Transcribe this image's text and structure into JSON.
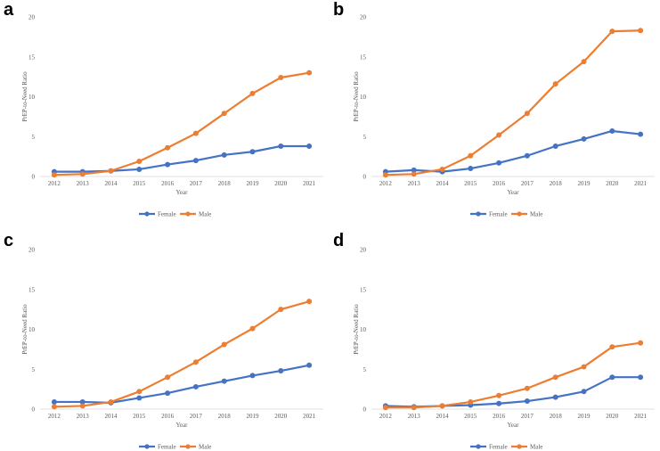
{
  "colors": {
    "female": "#4472c4",
    "male": "#ed7d31"
  },
  "chart_data": [
    {
      "type": "line",
      "panel": "a",
      "x": [
        2012,
        2013,
        2014,
        2015,
        2016,
        2017,
        2018,
        2019,
        2020,
        2021
      ],
      "categories": [
        "2012",
        "2013",
        "2014",
        "2015",
        "2016",
        "2017",
        "2018",
        "2019",
        "2020",
        "2021"
      ],
      "yticks": [
        "0",
        "5",
        "10",
        "15",
        "20"
      ],
      "ylim": [
        0,
        20
      ],
      "xlabel": "Year",
      "ylabel": "PrEP-to-Need Ratio",
      "legend": [
        "Female",
        "Male"
      ],
      "series": [
        {
          "name": "Female",
          "values": [
            0.6,
            0.6,
            0.7,
            0.9,
            1.5,
            2.0,
            2.7,
            3.1,
            3.8,
            3.8
          ]
        },
        {
          "name": "Male",
          "values": [
            0.2,
            0.3,
            0.7,
            1.9,
            3.6,
            5.4,
            7.9,
            10.4,
            12.4,
            13.0
          ]
        }
      ]
    },
    {
      "type": "line",
      "panel": "b",
      "x": [
        2012,
        2013,
        2014,
        2015,
        2016,
        2017,
        2018,
        2019,
        2020,
        2021
      ],
      "categories": [
        "2012",
        "2013",
        "2014",
        "2015",
        "2016",
        "2017",
        "2018",
        "2019",
        "2020",
        "2021"
      ],
      "yticks": [
        "0",
        "5",
        "10",
        "15",
        "20"
      ],
      "ylim": [
        0,
        20
      ],
      "xlabel": "Year",
      "ylabel": "PrEP-to-Need Ratio",
      "legend": [
        "Female",
        "Male"
      ],
      "series": [
        {
          "name": "Female",
          "values": [
            0.6,
            0.8,
            0.6,
            1.0,
            1.7,
            2.6,
            3.8,
            4.7,
            5.7,
            5.3
          ]
        },
        {
          "name": "Male",
          "values": [
            0.2,
            0.3,
            0.9,
            2.6,
            5.2,
            7.9,
            11.6,
            14.4,
            18.2,
            18.3
          ]
        }
      ]
    },
    {
      "type": "line",
      "panel": "c",
      "x": [
        2012,
        2013,
        2014,
        2015,
        2016,
        2017,
        2018,
        2019,
        2020,
        2021
      ],
      "categories": [
        "2012",
        "2013",
        "2014",
        "2015",
        "2016",
        "2017",
        "2018",
        "2019",
        "2020",
        "2021"
      ],
      "yticks": [
        "0",
        "5",
        "10",
        "15",
        "20"
      ],
      "ylim": [
        0,
        20
      ],
      "xlabel": "Year",
      "ylabel": "PrEP-to-Need Ratio",
      "legend": [
        "Female",
        "Male"
      ],
      "series": [
        {
          "name": "Female",
          "values": [
            0.9,
            0.9,
            0.8,
            1.4,
            2.0,
            2.8,
            3.5,
            4.2,
            4.8,
            5.5
          ]
        },
        {
          "name": "Male",
          "values": [
            0.3,
            0.4,
            0.9,
            2.2,
            4.0,
            5.9,
            8.1,
            10.1,
            12.5,
            13.5
          ]
        }
      ]
    },
    {
      "type": "line",
      "panel": "d",
      "x": [
        2012,
        2013,
        2014,
        2015,
        2016,
        2017,
        2018,
        2019,
        2020,
        2021
      ],
      "categories": [
        "2012",
        "2013",
        "2014",
        "2015",
        "2016",
        "2017",
        "2018",
        "2019",
        "2020",
        "2021"
      ],
      "yticks": [
        "0",
        "5",
        "10",
        "15",
        "20"
      ],
      "ylim": [
        0,
        20
      ],
      "xlabel": "Year",
      "ylabel": "PrEP-to-Need Ratio",
      "legend": [
        "Female",
        "Male"
      ],
      "series": [
        {
          "name": "Female",
          "values": [
            0.4,
            0.3,
            0.4,
            0.5,
            0.7,
            1.0,
            1.5,
            2.2,
            4.0,
            4.0
          ]
        },
        {
          "name": "Male",
          "values": [
            0.2,
            0.2,
            0.4,
            0.9,
            1.7,
            2.6,
            4.0,
            5.3,
            7.8,
            8.3
          ]
        }
      ]
    }
  ]
}
